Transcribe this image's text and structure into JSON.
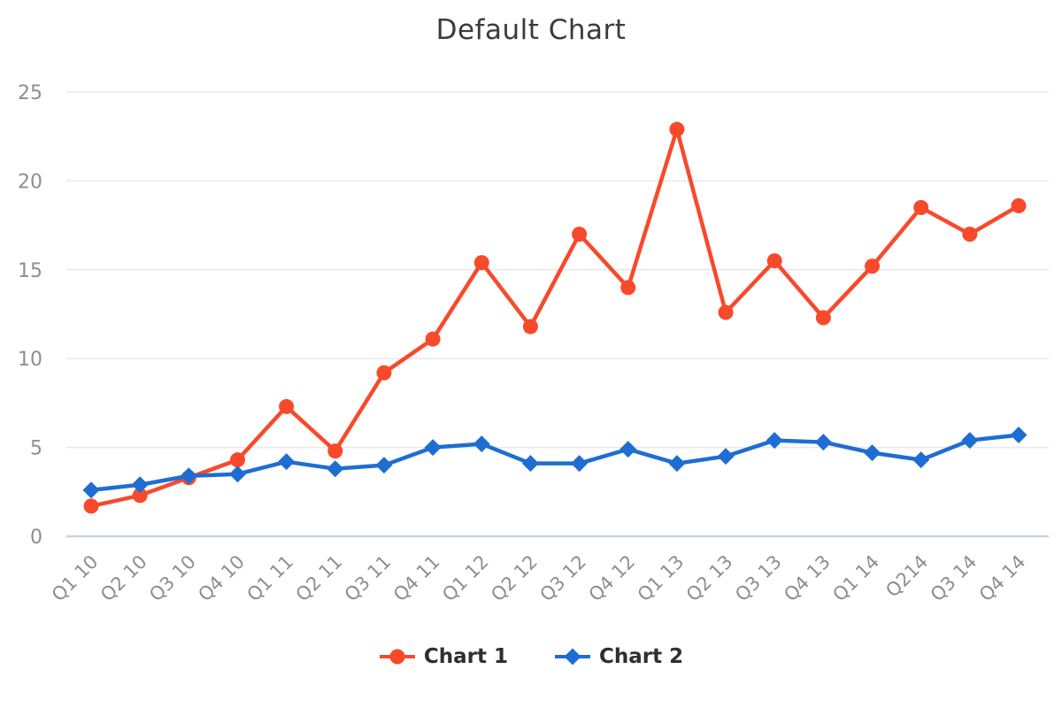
{
  "page": {
    "title": "Default Chart"
  },
  "colors": {
    "series1": "#F8492B",
    "series2": "#1E6DD2",
    "gridline": "#E8E8E8",
    "axis_line": "#C9D2E4",
    "tick_text": "#8E8E8E",
    "title_text": "#3B3B3B",
    "legend_text": "#2F2F2F",
    "background": "#FFFFFF"
  },
  "chart_data": {
    "type": "line",
    "title": "Default Chart",
    "xlabel": "",
    "ylabel": "",
    "ylim": [
      0,
      25
    ],
    "yticks": [
      0,
      5,
      10,
      15,
      20,
      25
    ],
    "grid": "horizontal-only",
    "legend_position": "bottom",
    "x_label_rotation": -45,
    "categories": [
      "Q1 10",
      "Q2 10",
      "Q3 10",
      "Q4 10",
      "Q1 11",
      "Q2 11",
      "Q3 11",
      "Q4 11",
      "Q1 12",
      "Q2 12",
      "Q3 12",
      "Q4 12",
      "Q1 13",
      "Q2 13",
      "Q3 13",
      "Q4 13",
      "Q1 14",
      "Q214",
      "Q3 14",
      "Q4 14"
    ],
    "series": [
      {
        "name": "Chart 1",
        "marker": "circle",
        "color": "#F8492B",
        "values": [
          1.7,
          2.3,
          3.3,
          4.3,
          7.3,
          4.8,
          9.2,
          11.1,
          15.4,
          11.8,
          17.0,
          14.0,
          22.9,
          12.6,
          15.5,
          12.3,
          15.2,
          18.5,
          17.0,
          18.6
        ]
      },
      {
        "name": "Chart 2",
        "marker": "diamond",
        "color": "#1E6DD2",
        "values": [
          2.6,
          2.9,
          3.4,
          3.5,
          4.2,
          3.8,
          4.0,
          5.0,
          5.2,
          4.1,
          4.1,
          4.9,
          4.1,
          4.5,
          5.4,
          5.3,
          4.7,
          4.3,
          5.4,
          5.7
        ]
      }
    ]
  }
}
